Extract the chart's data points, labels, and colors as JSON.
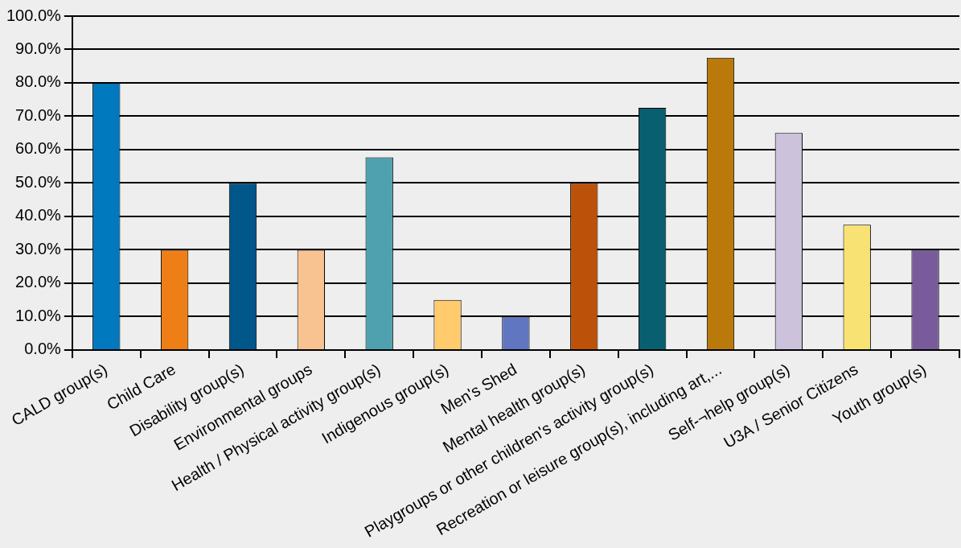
{
  "chart_data": {
    "type": "bar",
    "categories": [
      "CALD group(s)",
      "Child Care",
      "Disability group(s)",
      "Environmental groups",
      "Health / Physical activity group(s)",
      "Indigenous group(s)",
      "Men's Shed",
      "Mental health group(s)",
      "Playgroups or other children's activity group(s)",
      "Recreation or leisure group(s), including art,...",
      "Self-¬help group(s)",
      "U3A / Senior Citizens",
      "Youth group(s)"
    ],
    "values": [
      80,
      30,
      50,
      30,
      57.7,
      15,
      10,
      50,
      72.5,
      87.5,
      65,
      37.5,
      30
    ],
    "colors": [
      "#0079bf",
      "#ee7f16",
      "#02578a",
      "#f8c391",
      "#50a1af",
      "#ffcb6c",
      "#6076c0",
      "#bc510a",
      "#075f70",
      "#b9790b",
      "#cdc2db",
      "#f9e274",
      "#795b9b"
    ],
    "ylim": [
      0,
      100
    ],
    "yticks": [
      {
        "value": 0,
        "label": "0.0%"
      },
      {
        "value": 10,
        "label": "10.0%"
      },
      {
        "value": 20,
        "label": "20.0%"
      },
      {
        "value": 30,
        "label": "30.0%"
      },
      {
        "value": 40,
        "label": "40.0%"
      },
      {
        "value": 50,
        "label": "50.0%"
      },
      {
        "value": 60,
        "label": "60.0%"
      },
      {
        "value": 70,
        "label": "70.0%"
      },
      {
        "value": 80,
        "label": "80.0%"
      },
      {
        "value": 90,
        "label": "90.0%"
      },
      {
        "value": 100,
        "label": "100.0%"
      }
    ],
    "grid": "y",
    "legend": false
  }
}
